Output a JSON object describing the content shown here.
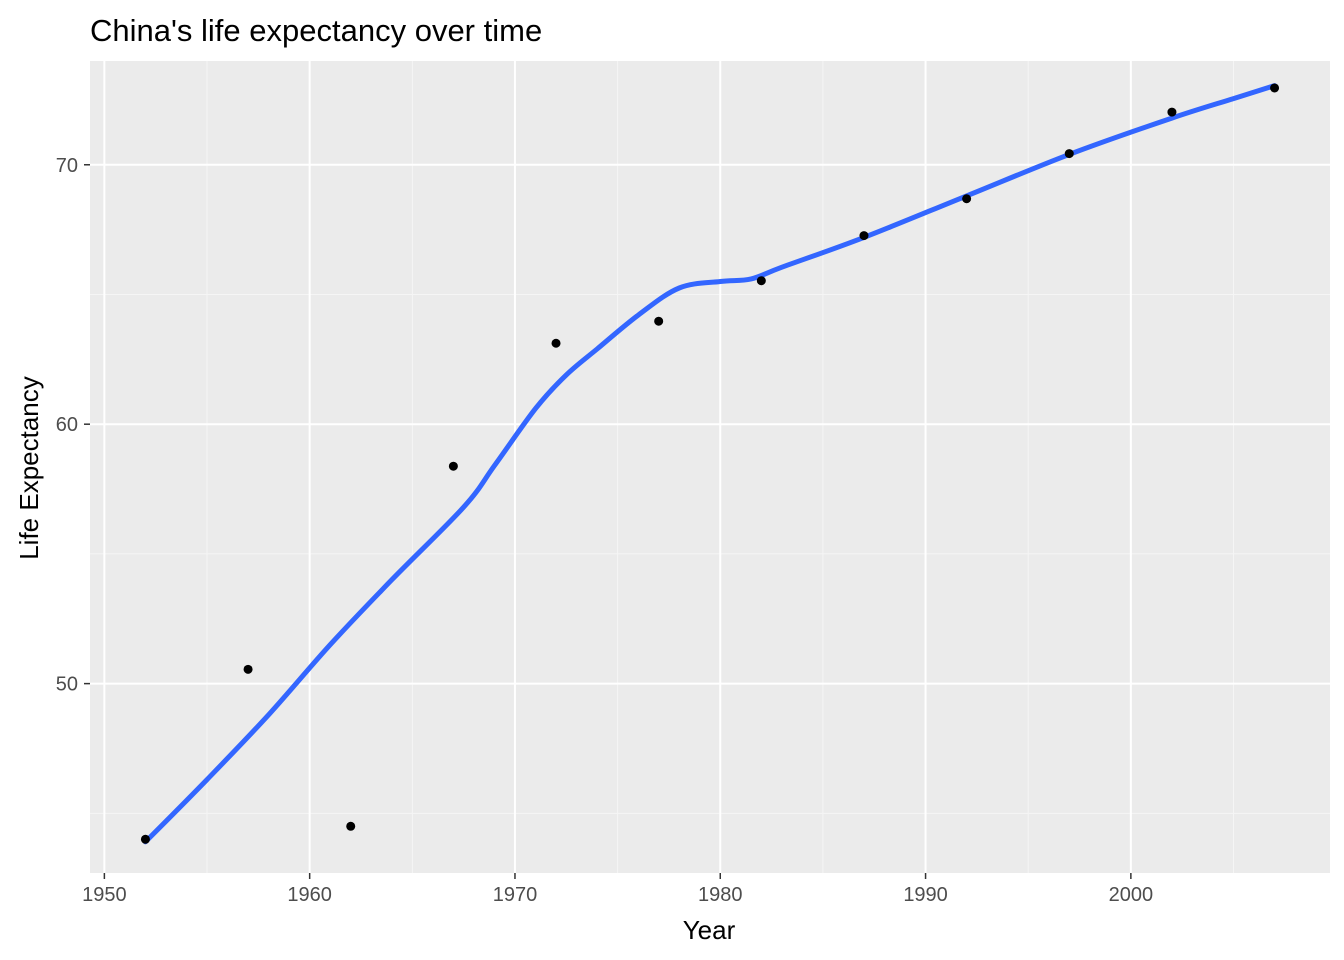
{
  "chart_data": {
    "type": "scatter",
    "title": "China's life expectancy over time",
    "xlabel": "Year",
    "ylabel": "Life Expectancy",
    "xlim": [
      1949.3,
      2009.7
    ],
    "ylim": [
      42.7,
      74.0
    ],
    "x_ticks": [
      1950,
      1960,
      1970,
      1980,
      1990,
      2000
    ],
    "y_ticks": [
      50,
      60,
      70
    ],
    "x_minor_ticks": [
      1955,
      1965,
      1975,
      1985,
      1995,
      2005
    ],
    "y_minor_ticks": [
      45,
      55,
      65
    ],
    "grid": true,
    "series": [
      {
        "kind": "points",
        "color": "#000000",
        "x": [
          1952,
          1957,
          1962,
          1967,
          1972,
          1977,
          1982,
          1987,
          1992,
          1997,
          2002,
          2007
        ],
        "y": [
          44.0,
          50.55,
          44.5,
          58.38,
          63.12,
          63.97,
          65.53,
          67.27,
          68.69,
          70.43,
          72.03,
          72.96
        ]
      },
      {
        "kind": "smooth",
        "color": "#3366ff",
        "x": [
          1952,
          1955,
          1958,
          1961,
          1964,
          1967.5,
          1969,
          1971,
          1972.5,
          1974,
          1976,
          1978,
          1980,
          1981.5,
          1983,
          1987,
          1992,
          1997,
          2002,
          2005,
          2007
        ],
        "y": [
          43.9,
          46.3,
          48.8,
          51.5,
          54.0,
          56.8,
          58.4,
          60.6,
          61.9,
          62.9,
          64.2,
          65.25,
          65.5,
          65.6,
          66.05,
          67.2,
          68.8,
          70.4,
          71.8,
          72.55,
          73.05
        ]
      }
    ],
    "colors": {
      "panel_background": "#ebebeb",
      "grid_major": "#ffffff",
      "grid_minor": "#f5f5f5",
      "tick_text": "#4d4d4d",
      "axis_tick": "#333333"
    }
  }
}
